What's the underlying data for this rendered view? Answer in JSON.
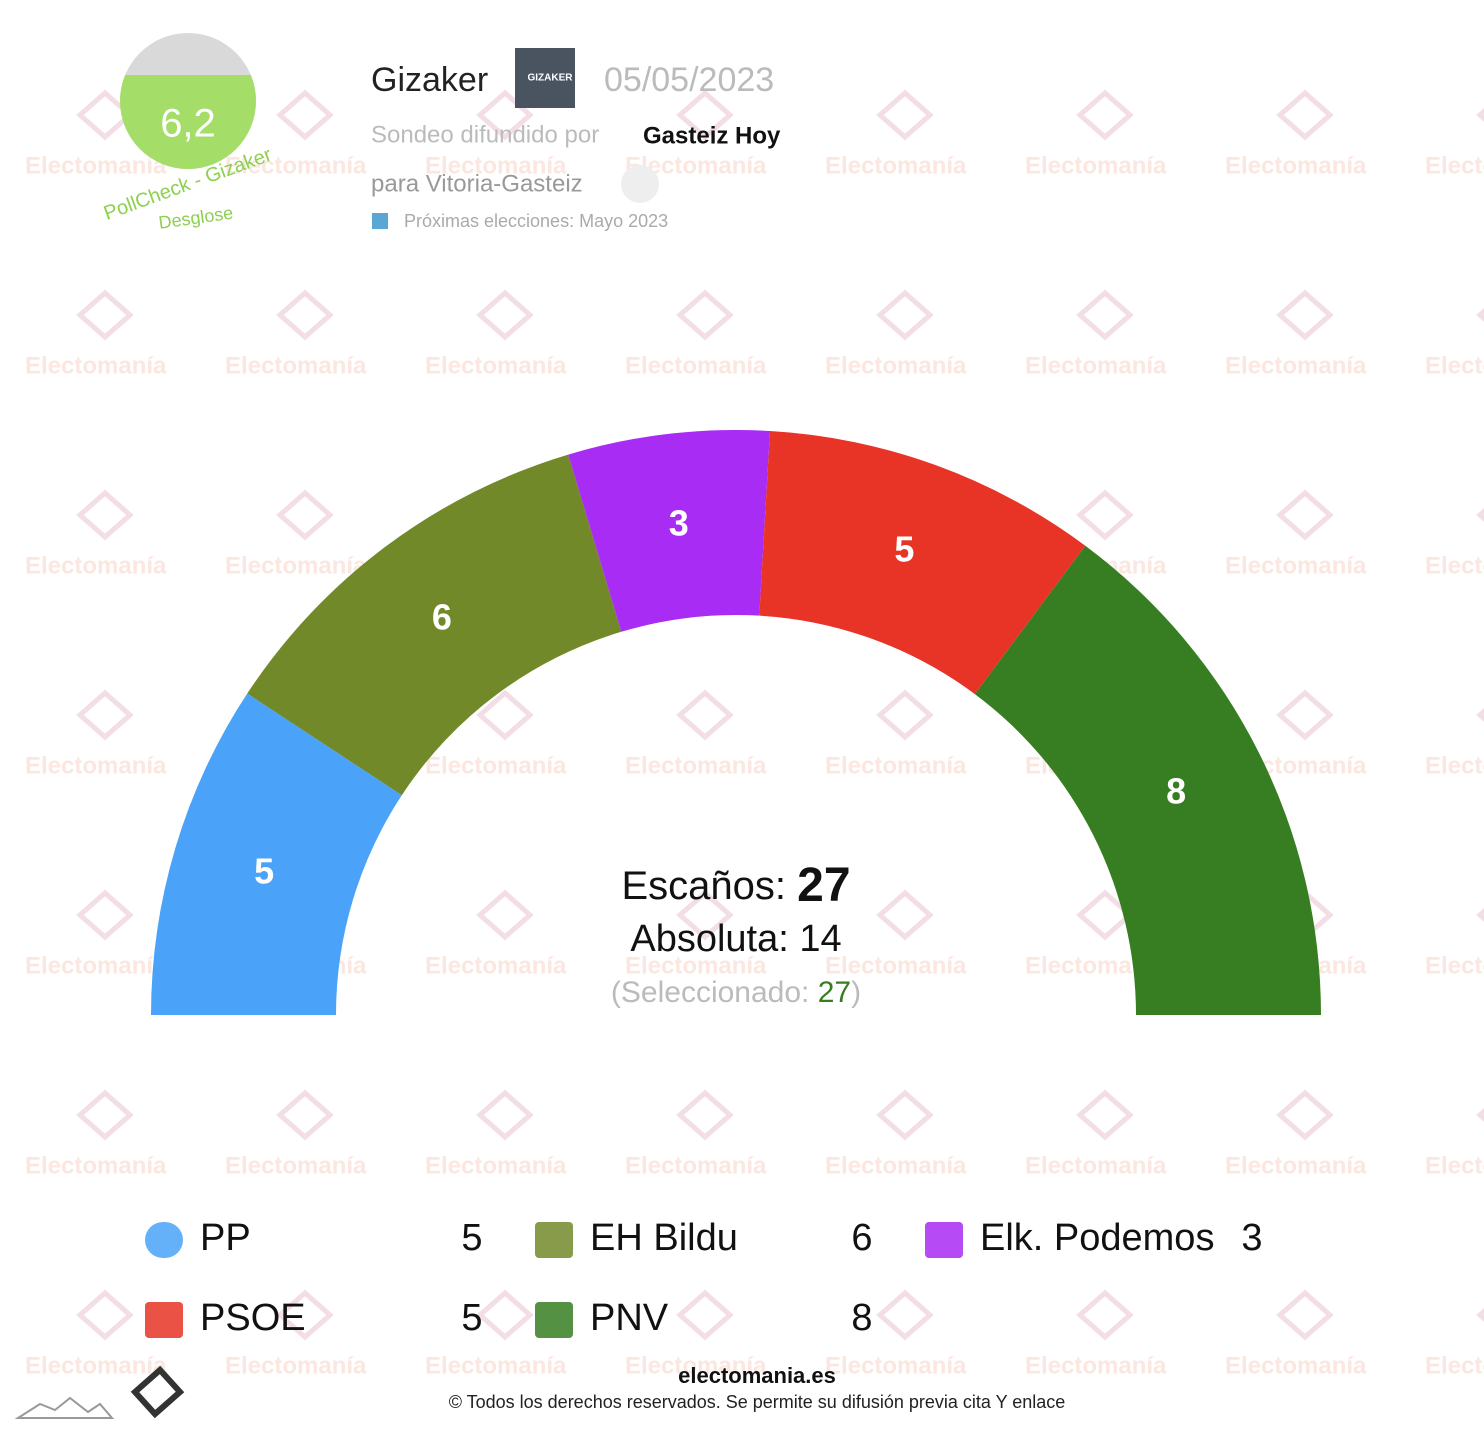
{
  "header": {
    "pollster": "Gizaker",
    "pollster_logo": "GIZAKER",
    "date": "05/05/2023",
    "published_by_label": "Sondeo difundido por",
    "published_by": "Gasteiz Hoy",
    "scope": "para Vitoria-Gasteiz",
    "next_elections": "Próximas elecciones: Mayo 2023",
    "score": "6,2",
    "score_caption": "PollCheck - Gizaker",
    "breakdown": "Desglose"
  },
  "watermark": "Electomanía",
  "chart_data": {
    "type": "parliament",
    "categories": [
      "PP",
      "EH Bildu",
      "Elk. Podemos",
      "PSOE",
      "PNV"
    ],
    "values": [
      5,
      6,
      3,
      5,
      8
    ],
    "colors": [
      "#4aa3f8",
      "#72892a",
      "#a92cf5",
      "#e83426",
      "#377e22"
    ],
    "seats_label": "Escaños:",
    "seats": 27,
    "majority_label": "Absoluta:",
    "majority": 14,
    "selected_label": "(Seleccionado:",
    "selected": 27,
    "selected_close": ")"
  },
  "footer": {
    "site": "electomania.es",
    "copyright": "© Todos los derechos reservados. Se permite su difusión previa cita Y enlace"
  }
}
